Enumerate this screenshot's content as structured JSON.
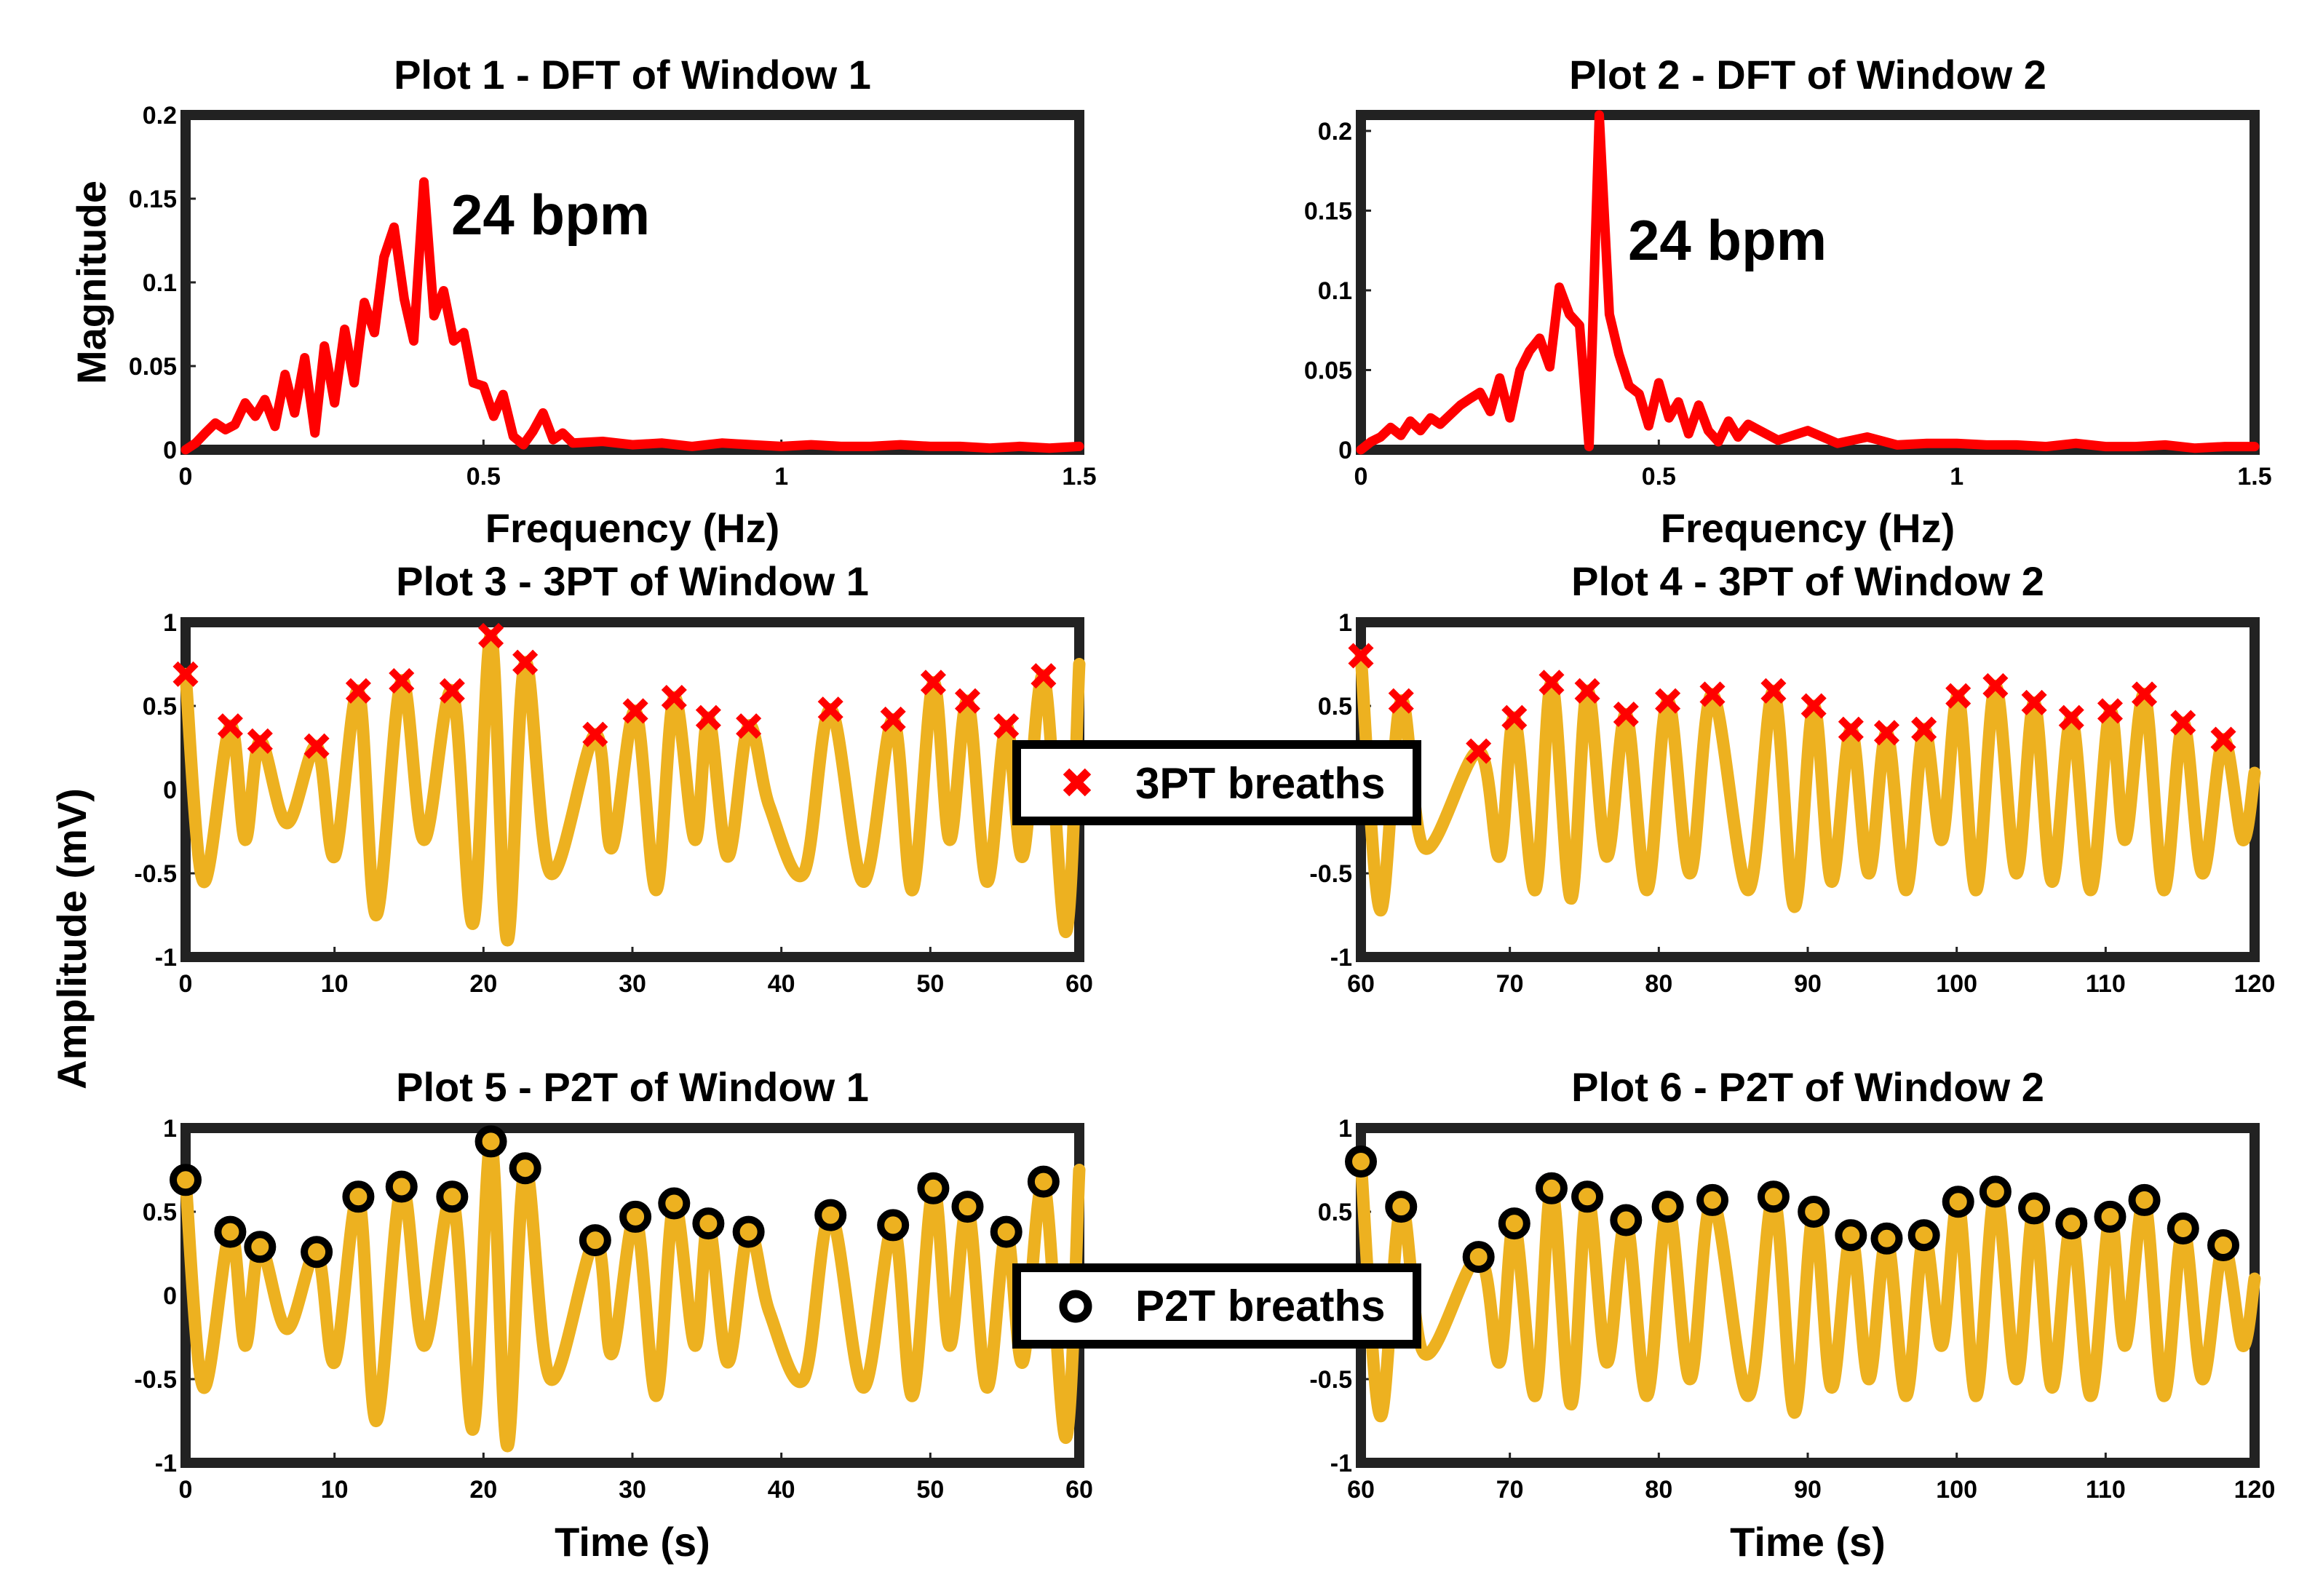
{
  "chart_data": {
    "colors": {
      "dft": "#ff0000",
      "signal": "#edb120",
      "x_marker": "#ff0000",
      "o_marker_edge": "#000000",
      "o_marker_fill": "#edb120"
    },
    "shared_labels": {
      "freq_xlabel": "Frequency (Hz)",
      "mag_ylabel": "Magnitude",
      "amp_ylabel": "Amplitude (mV)",
      "time_xlabel": "Time (s)"
    },
    "legends": {
      "three_pt": "3PT breaths",
      "p2t": "P2T breaths"
    },
    "plots": [
      {
        "id": "p1",
        "type": "line",
        "title": "Plot 1 - DFT of Window 1",
        "annotation": "24 bpm",
        "xlim": [
          0,
          1.5
        ],
        "ylim": [
          0,
          0.2
        ],
        "xticks": [
          0,
          0.5,
          1,
          1.5
        ],
        "xticklabels": [
          "0",
          "0.5",
          "1",
          "1.5"
        ],
        "yticks": [
          0,
          0.05,
          0.1,
          0.15,
          0.2
        ],
        "yticklabels": [
          "0",
          "0.05",
          "0.1",
          "0.15",
          "0.2"
        ],
        "x": [
          0,
          0.017,
          0.033,
          0.05,
          0.067,
          0.083,
          0.1,
          0.117,
          0.133,
          0.15,
          0.167,
          0.183,
          0.2,
          0.217,
          0.233,
          0.25,
          0.267,
          0.283,
          0.3,
          0.317,
          0.333,
          0.35,
          0.367,
          0.383,
          0.4,
          0.417,
          0.433,
          0.45,
          0.467,
          0.483,
          0.5,
          0.517,
          0.533,
          0.55,
          0.567,
          0.583,
          0.6,
          0.617,
          0.633,
          0.65,
          0.7,
          0.75,
          0.8,
          0.85,
          0.9,
          0.95,
          1.0,
          1.05,
          1.1,
          1.15,
          1.2,
          1.25,
          1.3,
          1.35,
          1.4,
          1.45,
          1.5
        ],
        "y": [
          0,
          0.004,
          0.01,
          0.016,
          0.012,
          0.015,
          0.028,
          0.02,
          0.03,
          0.014,
          0.045,
          0.022,
          0.055,
          0.01,
          0.062,
          0.028,
          0.072,
          0.04,
          0.088,
          0.07,
          0.115,
          0.133,
          0.09,
          0.065,
          0.16,
          0.08,
          0.095,
          0.065,
          0.07,
          0.04,
          0.038,
          0.02,
          0.033,
          0.008,
          0.003,
          0.011,
          0.022,
          0.006,
          0.01,
          0.004,
          0.005,
          0.003,
          0.004,
          0.002,
          0.004,
          0.003,
          0.002,
          0.003,
          0.002,
          0.002,
          0.003,
          0.002,
          0.002,
          0.001,
          0.002,
          0.001,
          0.002
        ]
      },
      {
        "id": "p2",
        "type": "line",
        "title": "Plot 2 - DFT of Window 2",
        "annotation": "24 bpm",
        "xlim": [
          0,
          1.5
        ],
        "ylim": [
          0,
          0.21
        ],
        "xticks": [
          0,
          0.5,
          1,
          1.5
        ],
        "xticklabels": [
          "0",
          "0.5",
          "1",
          "1.5"
        ],
        "yticks": [
          0,
          0.05,
          0.1,
          0.15,
          0.2
        ],
        "yticklabels": [
          "0",
          "0.05",
          "0.1",
          "0.15",
          "0.2"
        ],
        "x": [
          0,
          0.017,
          0.033,
          0.05,
          0.067,
          0.083,
          0.1,
          0.117,
          0.133,
          0.15,
          0.167,
          0.183,
          0.2,
          0.217,
          0.233,
          0.25,
          0.267,
          0.283,
          0.3,
          0.317,
          0.333,
          0.35,
          0.367,
          0.383,
          0.4,
          0.417,
          0.433,
          0.45,
          0.467,
          0.483,
          0.5,
          0.517,
          0.533,
          0.55,
          0.567,
          0.583,
          0.6,
          0.617,
          0.633,
          0.65,
          0.7,
          0.75,
          0.8,
          0.85,
          0.9,
          0.95,
          1.0,
          1.05,
          1.1,
          1.15,
          1.2,
          1.25,
          1.3,
          1.35,
          1.4,
          1.45,
          1.5
        ],
        "y": [
          0,
          0.005,
          0.008,
          0.014,
          0.009,
          0.018,
          0.012,
          0.02,
          0.016,
          0.022,
          0.028,
          0.032,
          0.036,
          0.024,
          0.045,
          0.02,
          0.05,
          0.062,
          0.07,
          0.052,
          0.102,
          0.085,
          0.078,
          0.002,
          0.21,
          0.085,
          0.06,
          0.04,
          0.035,
          0.015,
          0.042,
          0.02,
          0.03,
          0.01,
          0.028,
          0.012,
          0.005,
          0.018,
          0.008,
          0.016,
          0.006,
          0.012,
          0.004,
          0.008,
          0.003,
          0.004,
          0.004,
          0.003,
          0.003,
          0.002,
          0.004,
          0.002,
          0.002,
          0.003,
          0.001,
          0.002,
          0.002
        ]
      },
      {
        "id": "p3",
        "type": "line",
        "title": "Plot 3 - 3PT of Window 1",
        "marker": "x",
        "xlim": [
          0,
          60
        ],
        "ylim": [
          -1,
          1
        ],
        "xticks": [
          0,
          10,
          20,
          30,
          40,
          50,
          60
        ],
        "xticklabels": [
          "0",
          "10",
          "20",
          "30",
          "40",
          "50",
          "60"
        ],
        "yticks": [
          -1,
          -0.5,
          0,
          0.5,
          1
        ],
        "yticklabels": [
          "-1",
          "-0.5",
          "0",
          "0.5",
          "1"
        ],
        "x": [
          0,
          1.2,
          3.0,
          4.0,
          5.0,
          6.8,
          8.8,
          10.0,
          11.6,
          12.8,
          14.5,
          16.0,
          17.9,
          19.3,
          20.5,
          21.6,
          22.8,
          24.5,
          27.5,
          28.6,
          30.2,
          31.6,
          32.8,
          34.2,
          35.1,
          36.4,
          37.8,
          39.2,
          41.5,
          43.3,
          45.5,
          47.5,
          48.8,
          50.2,
          51.3,
          52.5,
          53.8,
          55.1,
          56.2,
          57.6,
          59.1,
          60
        ],
        "y": [
          0.69,
          -0.55,
          0.38,
          -0.3,
          0.29,
          -0.2,
          0.26,
          -0.4,
          0.59,
          -0.75,
          0.65,
          -0.3,
          0.59,
          -0.8,
          0.92,
          -0.9,
          0.76,
          -0.5,
          0.33,
          -0.35,
          0.47,
          -0.6,
          0.55,
          -0.3,
          0.43,
          -0.4,
          0.38,
          -0.1,
          -0.5,
          0.48,
          -0.55,
          0.42,
          -0.6,
          0.64,
          -0.3,
          0.53,
          -0.55,
          0.38,
          -0.4,
          0.68,
          -0.85,
          0.75
        ],
        "peaks_x": [
          0,
          3.0,
          5.0,
          8.8,
          11.6,
          14.5,
          17.9,
          20.5,
          22.8,
          27.5,
          30.2,
          32.8,
          35.1,
          37.8,
          43.3,
          47.5,
          50.2,
          52.5,
          55.1,
          57.6
        ],
        "peaks_y": [
          0.69,
          0.38,
          0.29,
          0.26,
          0.59,
          0.65,
          0.59,
          0.92,
          0.76,
          0.33,
          0.47,
          0.55,
          0.43,
          0.38,
          0.48,
          0.42,
          0.64,
          0.53,
          0.38,
          0.68
        ]
      },
      {
        "id": "p4",
        "type": "line",
        "title": "Plot 4 - 3PT of Window 2",
        "marker": "x",
        "xlim": [
          60,
          120
        ],
        "ylim": [
          -1,
          1
        ],
        "xticks": [
          60,
          70,
          80,
          90,
          100,
          110,
          120
        ],
        "xticklabels": [
          "60",
          "70",
          "80",
          "90",
          "100",
          "110",
          "120"
        ],
        "yticks": [
          -1,
          -0.5,
          0,
          0.5,
          1
        ],
        "yticklabels": [
          "-1",
          "-0.5",
          "0",
          "0.5",
          "1"
        ],
        "x": [
          60,
          61.3,
          62.7,
          64.3,
          67.9,
          69.3,
          70.3,
          71.7,
          72.8,
          74.1,
          75.2,
          76.5,
          77.8,
          79.2,
          80.6,
          82.1,
          83.6,
          86.0,
          87.7,
          89.1,
          90.4,
          91.6,
          92.9,
          94.1,
          95.3,
          96.6,
          97.8,
          99.0,
          100.1,
          101.3,
          102.6,
          104.0,
          105.2,
          106.4,
          107.7,
          109.0,
          110.3,
          111.3,
          112.6,
          113.9,
          115.2,
          116.5,
          117.9,
          119.2,
          120
        ],
        "y": [
          0.8,
          -0.72,
          0.53,
          -0.35,
          0.23,
          -0.4,
          0.43,
          -0.6,
          0.64,
          -0.65,
          0.59,
          -0.4,
          0.45,
          -0.6,
          0.53,
          -0.5,
          0.57,
          -0.6,
          0.59,
          -0.7,
          0.5,
          -0.55,
          0.36,
          -0.5,
          0.34,
          -0.6,
          0.36,
          -0.3,
          0.56,
          -0.6,
          0.62,
          -0.5,
          0.52,
          -0.55,
          0.43,
          -0.6,
          0.47,
          -0.3,
          0.57,
          -0.6,
          0.4,
          -0.5,
          0.3,
          -0.3,
          0.1
        ],
        "peaks_x": [
          60,
          62.7,
          67.9,
          70.3,
          72.8,
          75.2,
          77.8,
          80.6,
          83.6,
          87.7,
          90.4,
          92.9,
          95.3,
          97.8,
          100.1,
          102.6,
          105.2,
          107.7,
          110.3,
          112.6,
          115.2,
          117.9
        ],
        "peaks_y": [
          0.8,
          0.53,
          0.23,
          0.43,
          0.64,
          0.59,
          0.45,
          0.53,
          0.57,
          0.59,
          0.5,
          0.36,
          0.34,
          0.36,
          0.56,
          0.62,
          0.52,
          0.43,
          0.47,
          0.57,
          0.4,
          0.3
        ]
      },
      {
        "id": "p5",
        "type": "line",
        "title": "Plot 5 - P2T of Window 1",
        "marker": "o",
        "xlim": [
          0,
          60
        ],
        "ylim": [
          -1,
          1
        ],
        "xticks": [
          0,
          10,
          20,
          30,
          40,
          50,
          60
        ],
        "xticklabels": [
          "0",
          "10",
          "20",
          "30",
          "40",
          "50",
          "60"
        ],
        "yticks": [
          -1,
          -0.5,
          0,
          0.5,
          1
        ],
        "yticklabels": [
          "-1",
          "-0.5",
          "0",
          "0.5",
          "1"
        ],
        "x": [
          0,
          1.2,
          3.0,
          4.0,
          5.0,
          6.8,
          8.8,
          10.0,
          11.6,
          12.8,
          14.5,
          16.0,
          17.9,
          19.3,
          20.5,
          21.6,
          22.8,
          24.5,
          27.5,
          28.6,
          30.2,
          31.6,
          32.8,
          34.2,
          35.1,
          36.4,
          37.8,
          39.2,
          41.5,
          43.3,
          45.5,
          47.5,
          48.8,
          50.2,
          51.3,
          52.5,
          53.8,
          55.1,
          56.2,
          57.6,
          59.1,
          60
        ],
        "y": [
          0.69,
          -0.55,
          0.38,
          -0.3,
          0.29,
          -0.2,
          0.26,
          -0.4,
          0.59,
          -0.75,
          0.65,
          -0.3,
          0.59,
          -0.8,
          0.92,
          -0.9,
          0.76,
          -0.5,
          0.33,
          -0.35,
          0.47,
          -0.6,
          0.55,
          -0.3,
          0.43,
          -0.4,
          0.38,
          -0.1,
          -0.5,
          0.48,
          -0.55,
          0.42,
          -0.6,
          0.64,
          -0.3,
          0.53,
          -0.55,
          0.38,
          -0.4,
          0.68,
          -0.85,
          0.75
        ],
        "peaks_x": [
          0,
          3.0,
          5.0,
          8.8,
          11.6,
          14.5,
          17.9,
          20.5,
          22.8,
          27.5,
          30.2,
          32.8,
          35.1,
          37.8,
          43.3,
          47.5,
          50.2,
          52.5,
          55.1,
          57.6
        ],
        "peaks_y": [
          0.69,
          0.38,
          0.29,
          0.26,
          0.59,
          0.65,
          0.59,
          0.92,
          0.76,
          0.33,
          0.47,
          0.55,
          0.43,
          0.38,
          0.48,
          0.42,
          0.64,
          0.53,
          0.38,
          0.68
        ]
      },
      {
        "id": "p6",
        "type": "line",
        "title": "Plot 6 - P2T of Window 2",
        "marker": "o",
        "xlim": [
          60,
          120
        ],
        "ylim": [
          -1,
          1
        ],
        "xticks": [
          60,
          70,
          80,
          90,
          100,
          110,
          120
        ],
        "xticklabels": [
          "60",
          "70",
          "80",
          "90",
          "100",
          "110",
          "120"
        ],
        "yticks": [
          -1,
          -0.5,
          0,
          0.5,
          1
        ],
        "yticklabels": [
          "-1",
          "-0.5",
          "0",
          "0.5",
          "1"
        ],
        "x": [
          60,
          61.3,
          62.7,
          64.3,
          67.9,
          69.3,
          70.3,
          71.7,
          72.8,
          74.1,
          75.2,
          76.5,
          77.8,
          79.2,
          80.6,
          82.1,
          83.6,
          86.0,
          87.7,
          89.1,
          90.4,
          91.6,
          92.9,
          94.1,
          95.3,
          96.6,
          97.8,
          99.0,
          100.1,
          101.3,
          102.6,
          104.0,
          105.2,
          106.4,
          107.7,
          109.0,
          110.3,
          111.3,
          112.6,
          113.9,
          115.2,
          116.5,
          117.9,
          119.2,
          120
        ],
        "y": [
          0.8,
          -0.72,
          0.53,
          -0.35,
          0.23,
          -0.4,
          0.43,
          -0.6,
          0.64,
          -0.65,
          0.59,
          -0.4,
          0.45,
          -0.6,
          0.53,
          -0.5,
          0.57,
          -0.6,
          0.59,
          -0.7,
          0.5,
          -0.55,
          0.36,
          -0.5,
          0.34,
          -0.6,
          0.36,
          -0.3,
          0.56,
          -0.6,
          0.62,
          -0.5,
          0.52,
          -0.55,
          0.43,
          -0.6,
          0.47,
          -0.3,
          0.57,
          -0.6,
          0.4,
          -0.5,
          0.3,
          -0.3,
          0.1
        ],
        "peaks_x": [
          60,
          62.7,
          67.9,
          70.3,
          72.8,
          75.2,
          77.8,
          80.6,
          83.6,
          87.7,
          90.4,
          92.9,
          95.3,
          97.8,
          100.1,
          102.6,
          105.2,
          107.7,
          110.3,
          112.6,
          115.2,
          117.9
        ],
        "peaks_y": [
          0.8,
          0.53,
          0.23,
          0.43,
          0.64,
          0.59,
          0.45,
          0.53,
          0.57,
          0.59,
          0.5,
          0.36,
          0.34,
          0.36,
          0.56,
          0.62,
          0.52,
          0.43,
          0.47,
          0.57,
          0.4,
          0.3
        ]
      }
    ]
  }
}
